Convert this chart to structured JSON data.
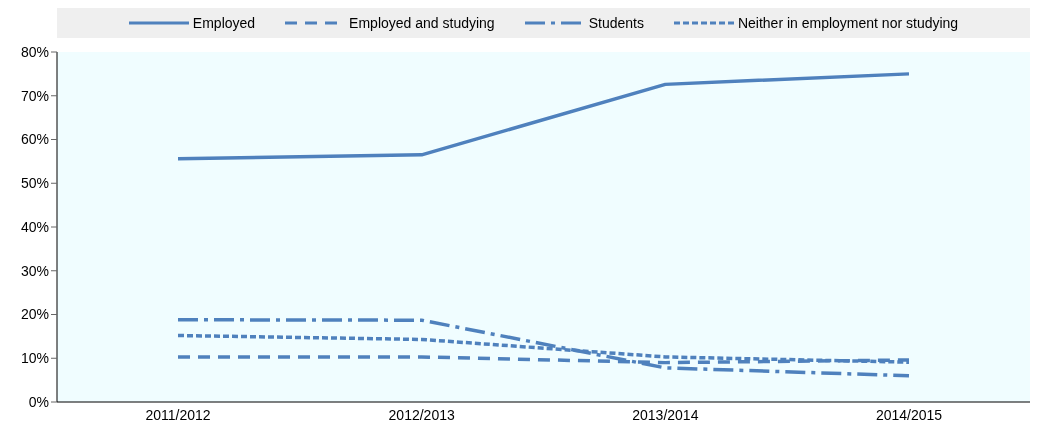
{
  "chart_data": {
    "type": "line",
    "categories": [
      "2011/2012",
      "2012/2013",
      "2013/2014",
      "2014/2015"
    ],
    "series": [
      {
        "name": "Employed",
        "color": "#4f81bd",
        "line_style": "solid",
        "values": [
          55.6,
          56.5,
          72.6,
          75.0
        ]
      },
      {
        "name": "Employed and studying",
        "color": "#4f81bd",
        "line_style": "dashed",
        "values": [
          10.3,
          10.3,
          9.0,
          9.6
        ]
      },
      {
        "name": "Students",
        "color": "#4f81bd",
        "line_style": "dashdot",
        "values": [
          18.8,
          18.7,
          7.8,
          6.0
        ]
      },
      {
        "name": "Neither in employment nor studying",
        "color": "#4f81bd",
        "line_style": "dotted",
        "values": [
          15.2,
          14.3,
          10.3,
          9.1
        ]
      }
    ],
    "ylim": [
      0,
      80
    ],
    "yticks": [
      {
        "value": 0,
        "label": "0%"
      },
      {
        "value": 10,
        "label": "10%"
      },
      {
        "value": 20,
        "label": "20%"
      },
      {
        "value": 30,
        "label": "30%"
      },
      {
        "value": 40,
        "label": "40%"
      },
      {
        "value": 50,
        "label": "50%"
      },
      {
        "value": 60,
        "label": "60%"
      },
      {
        "value": 70,
        "label": "70%"
      },
      {
        "value": 80,
        "label": "80%"
      }
    ],
    "legend": "top",
    "marker": "none",
    "grid": false
  }
}
